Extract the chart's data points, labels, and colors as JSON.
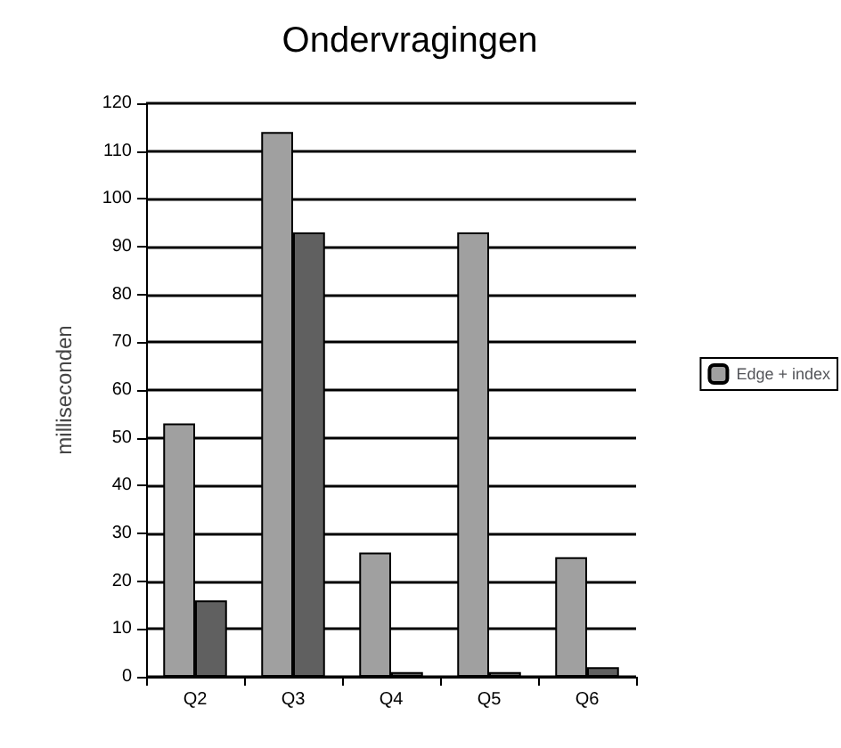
{
  "chart_data": {
    "type": "bar",
    "title": "Ondervragingen",
    "ylabel": "milliseconden",
    "categories": [
      "Q2",
      "Q3",
      "Q4",
      "Q5",
      "Q6"
    ],
    "series": [
      {
        "name": "Edge + index",
        "color": "#a0a0a0",
        "values": [
          53,
          114,
          26,
          93,
          25
        ]
      },
      {
        "color": "#606060",
        "values": [
          16,
          93,
          1,
          1,
          2
        ]
      }
    ],
    "ylim": [
      0,
      120
    ],
    "yticks": [
      0,
      10,
      20,
      30,
      40,
      50,
      60,
      70,
      80,
      90,
      100,
      110,
      120
    ],
    "grid": "y",
    "legend": "right"
  }
}
